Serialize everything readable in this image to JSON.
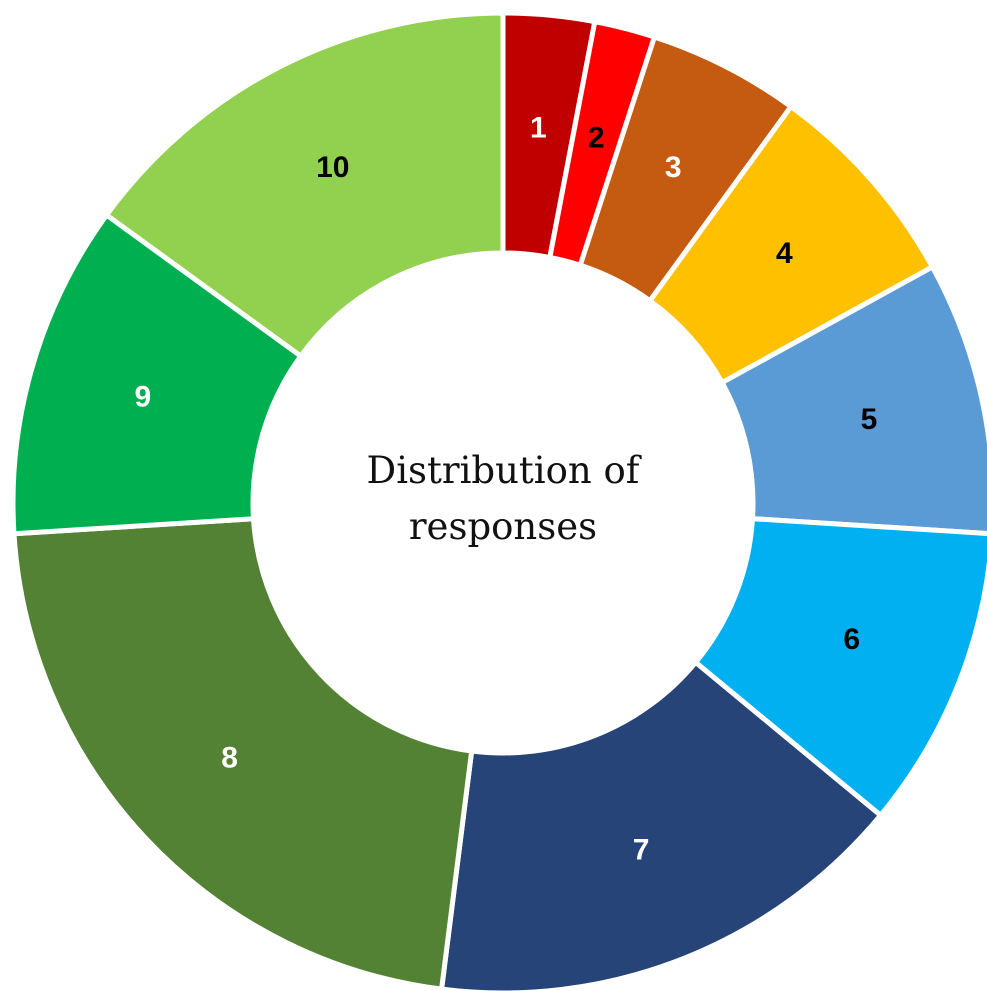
{
  "chart_data": {
    "type": "donut",
    "title": "Distribution of responses",
    "categories": [
      "1",
      "2",
      "3",
      "4",
      "5",
      "6",
      "7",
      "8",
      "9",
      "10"
    ],
    "values": [
      3,
      2,
      5,
      7,
      9,
      10,
      16,
      22,
      11,
      15
    ],
    "colors": [
      "#c00000",
      "#ff0000",
      "#c55a11",
      "#ffc000",
      "#5b9bd5",
      "#00b0f0",
      "#264478",
      "#548235",
      "#00b050",
      "#92d050"
    ],
    "label_colors": [
      "#ffffff",
      "#000000",
      "#ffffff",
      "#000000",
      "#000000",
      "#000000",
      "#ffffff",
      "#ffffff",
      "#ffffff",
      "#000000"
    ]
  }
}
